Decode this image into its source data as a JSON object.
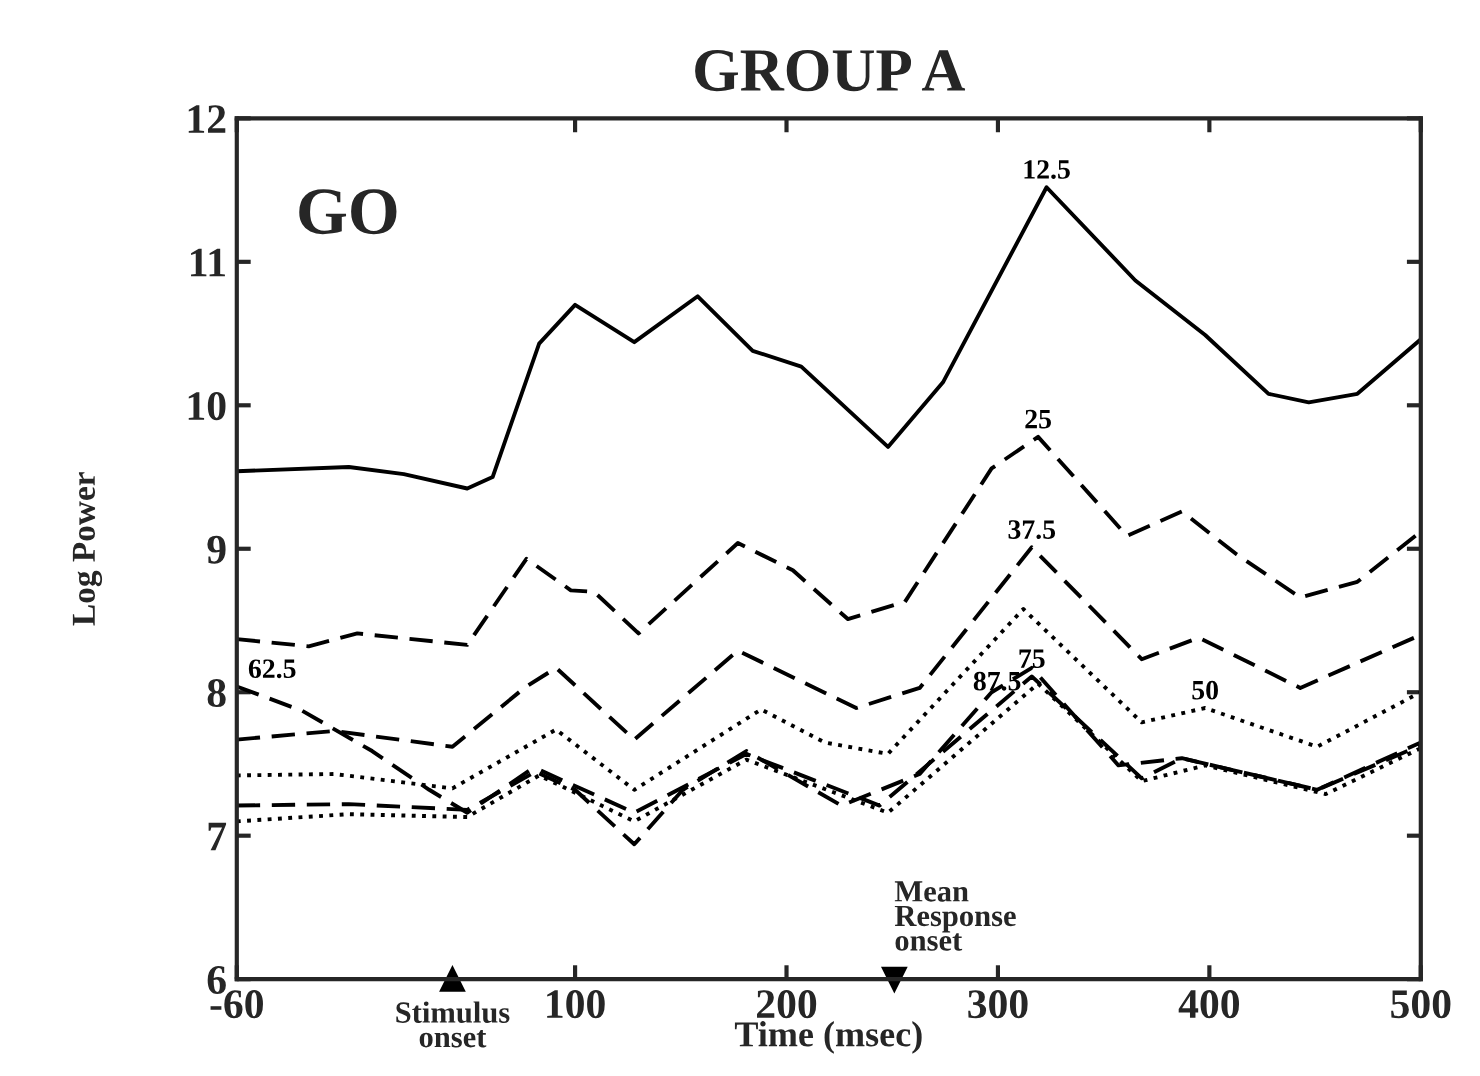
{
  "chart_data": {
    "type": "line",
    "title": "GROUP A",
    "xlabel": "Time (msec)",
    "ylabel": "Log Power",
    "xlim": [
      -60,
      500
    ],
    "xticks": [
      -60,
      100,
      200,
      300,
      400,
      500
    ],
    "ylim": [
      6,
      12
    ],
    "yticks": [
      6,
      7,
      8,
      9,
      10,
      11,
      12
    ],
    "grid": false,
    "legend": false,
    "marker": "none",
    "series": [
      {
        "name": "12.5",
        "color": "#000000",
        "line_style": "solid",
        "x": [
          -60,
          -7,
          19,
          49,
          61,
          83,
          100,
          128,
          158,
          184,
          207,
          248,
          274,
          323,
          365,
          398,
          428,
          447,
          470,
          500
        ],
        "values": [
          9.54,
          9.57,
          9.52,
          9.42,
          9.5,
          10.43,
          10.7,
          10.44,
          10.76,
          10.38,
          10.27,
          9.71,
          10.16,
          11.52,
          10.87,
          10.49,
          10.08,
          10.02,
          10.08,
          10.46
        ]
      },
      {
        "name": "25",
        "color": "#000000",
        "line_style": "dashed",
        "x": [
          -60,
          -26,
          -3,
          49,
          77,
          98,
          109,
          130,
          177,
          203,
          229,
          256,
          297,
          319,
          361,
          387,
          413,
          443,
          470,
          500
        ],
        "values": [
          8.37,
          8.32,
          8.41,
          8.33,
          8.93,
          8.71,
          8.7,
          8.41,
          9.04,
          8.85,
          8.51,
          8.63,
          9.56,
          9.78,
          9.09,
          9.26,
          8.96,
          8.66,
          8.77,
          9.12
        ]
      },
      {
        "name": "37.5",
        "color": "#000000",
        "line_style": "dashed",
        "x": [
          -60,
          -14,
          42,
          76,
          91,
          128,
          177,
          233,
          263,
          316,
          368,
          395,
          443,
          500
        ],
        "values": [
          7.67,
          7.73,
          7.62,
          8.03,
          8.17,
          7.67,
          8.29,
          7.89,
          8.03,
          9.01,
          8.23,
          8.38,
          8.03,
          8.4
        ]
      },
      {
        "name": "50",
        "color": "#000000",
        "line_style": "dotted",
        "x": [
          -60,
          -14,
          42,
          91,
          128,
          188,
          218,
          248,
          312,
          368,
          398,
          451,
          500
        ],
        "values": [
          7.42,
          7.43,
          7.33,
          7.74,
          7.32,
          7.88,
          7.65,
          7.57,
          8.58,
          7.79,
          7.89,
          7.62,
          8.0
        ]
      },
      {
        "name": "62.5",
        "color": "#000000",
        "line_style": "dashed",
        "x": [
          -60,
          -29,
          4,
          31,
          49,
          79,
          100,
          128,
          151,
          181,
          226,
          263,
          297,
          316,
          357,
          387,
          451,
          500
        ],
        "values": [
          8.04,
          7.87,
          7.59,
          7.32,
          7.16,
          7.46,
          7.32,
          6.94,
          7.32,
          7.59,
          7.21,
          7.43,
          8.0,
          8.17,
          7.49,
          7.54,
          7.32,
          7.65
        ]
      },
      {
        "name": "75",
        "color": "#000000",
        "line_style": "dashed",
        "x": [
          -60,
          -7,
          49,
          83,
          128,
          181,
          244,
          316,
          368,
          387,
          451,
          500
        ],
        "values": [
          7.21,
          7.22,
          7.18,
          7.46,
          7.16,
          7.57,
          7.21,
          8.11,
          7.4,
          7.54,
          7.32,
          7.63
        ]
      },
      {
        "name": "87.5",
        "color": "#000000",
        "line_style": "dotted",
        "x": [
          -60,
          -7,
          49,
          83,
          128,
          181,
          248,
          319,
          368,
          398,
          455,
          500
        ],
        "values": [
          7.1,
          7.15,
          7.13,
          7.42,
          7.1,
          7.53,
          7.16,
          8.06,
          7.38,
          7.49,
          7.29,
          7.61
        ]
      }
    ],
    "annotations": [
      "GO",
      {
        "text": "Stimulus\nonset",
        "x": 42,
        "y": 6
      },
      {
        "text": "Mean\nResponse\nonset",
        "x": 251,
        "y": 6
      }
    ]
  }
}
